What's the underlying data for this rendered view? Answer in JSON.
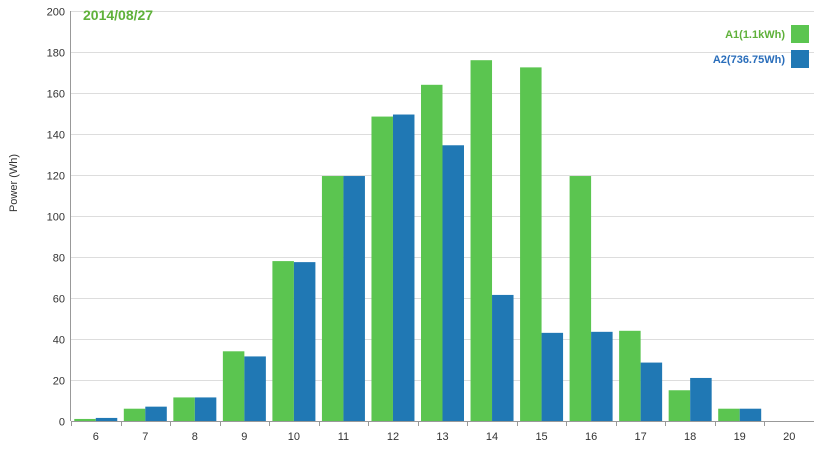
{
  "chart_data": {
    "type": "bar",
    "title": "2014/08/27",
    "title_color": "#5fb13a",
    "ylabel": "Power (Wh)",
    "xlabel": "",
    "ylim": [
      0,
      200
    ],
    "yticks": [
      0,
      20,
      40,
      60,
      80,
      100,
      120,
      140,
      160,
      180,
      200
    ],
    "grid": true,
    "legend_position": "top-right",
    "categories": [
      "6",
      "7",
      "8",
      "9",
      "10",
      "11",
      "12",
      "13",
      "14",
      "15",
      "16",
      "17",
      "18",
      "19",
      "20"
    ],
    "series": [
      {
        "name": "A1(1.1kWh)",
        "color": "#5bc550",
        "label_color": "#5fb13a",
        "values": [
          1,
          6,
          11.5,
          34,
          78,
          119.5,
          148.5,
          164,
          176,
          172.5,
          119.5,
          44,
          15,
          6,
          0
        ]
      },
      {
        "name": "A2(736.75Wh)",
        "color": "#2078b4",
        "label_color": "#2a6ebb",
        "values": [
          1.5,
          7,
          11.5,
          31.5,
          77.5,
          119.5,
          149.5,
          134.5,
          61.5,
          43,
          43.5,
          28.5,
          21,
          6,
          0
        ]
      }
    ]
  }
}
